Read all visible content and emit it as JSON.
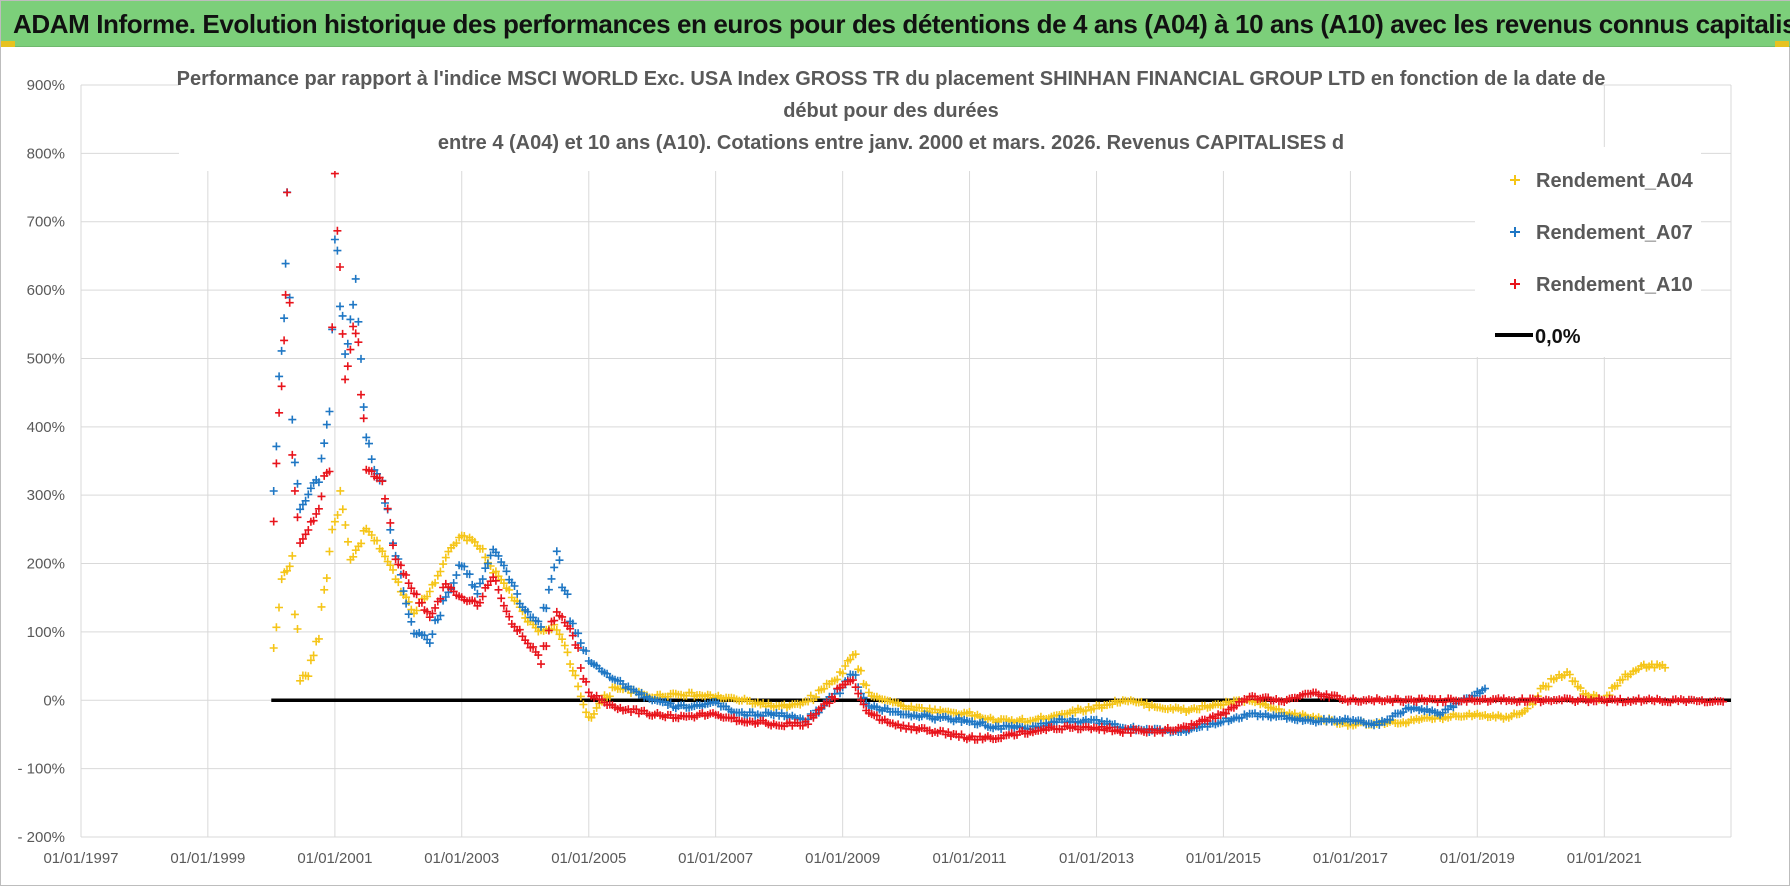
{
  "header": {
    "title": "ADAM Informe. Evolution historique des performances en euros pour des détentions de 4 ans (A04) à 10 ans (A10) avec les revenus connus capitalisés"
  },
  "chart_data": {
    "type": "scatter",
    "title_lines": [
      "Performance par rapport à l'indice MSCI WORLD Exc. USA Index GROSS TR  du placement SHINHAN FINANCIAL GROUP LTD en fonction de la date de",
      "début pour des durées",
      "entre 4 (A04) et 10 ans (A10). Cotations entre janv. 2000 et mars. 2026. Revenus CAPITALISES d"
    ],
    "xlabel": "",
    "ylabel": "",
    "xlim": [
      "1997-01-01",
      "2022-12-31"
    ],
    "ylim": [
      -200,
      900
    ],
    "y_ticks": [
      -200,
      -100,
      0,
      100,
      200,
      300,
      400,
      500,
      600,
      700,
      800,
      900
    ],
    "y_tick_labels": [
      "- 200%",
      "- 100%",
      "0%",
      "100%",
      "200%",
      "300%",
      "400%",
      "500%",
      "600%",
      "700%",
      "800%",
      "900%"
    ],
    "x_ticks": [
      "1997-01-01",
      "1999-01-01",
      "2001-01-01",
      "2003-01-01",
      "2005-01-01",
      "2007-01-01",
      "2009-01-01",
      "2011-01-01",
      "2013-01-01",
      "2015-01-01",
      "2017-01-01",
      "2019-01-01",
      "2021-01-01"
    ],
    "x_tick_labels": [
      "01/01/1997",
      "01/01/1999",
      "01/01/2001",
      "01/01/2003",
      "01/01/2005",
      "01/01/2007",
      "01/01/2009",
      "01/01/2011",
      "01/01/2013",
      "01/01/2015",
      "01/01/2017",
      "01/01/2019",
      "01/01/2021"
    ],
    "grid": true,
    "legend_position": "top-right",
    "series": [
      {
        "name": "Rendement_A04",
        "color": "#f5c518",
        "marker": "+",
        "points": [
          [
            "2000-01-15",
            70
          ],
          [
            "2000-03-01",
            180
          ],
          [
            "2000-05-01",
            200
          ],
          [
            "2000-06-15",
            30
          ],
          [
            "2000-08-01",
            40
          ],
          [
            "2000-10-01",
            100
          ],
          [
            "2000-12-01",
            220
          ],
          [
            "2001-02-01",
            300
          ],
          [
            "2001-04-01",
            200
          ],
          [
            "2001-07-01",
            250
          ],
          [
            "2001-10-01",
            220
          ],
          [
            "2002-01-01",
            170
          ],
          [
            "2002-04-01",
            130
          ],
          [
            "2002-07-01",
            160
          ],
          [
            "2002-10-01",
            210
          ],
          [
            "2003-01-01",
            240
          ],
          [
            "2003-04-01",
            230
          ],
          [
            "2003-07-01",
            190
          ],
          [
            "2003-10-01",
            160
          ],
          [
            "2004-01-01",
            120
          ],
          [
            "2004-04-01",
            100
          ],
          [
            "2004-07-01",
            110
          ],
          [
            "2004-10-01",
            40
          ],
          [
            "2005-01-01",
            -25
          ],
          [
            "2005-06-01",
            20
          ],
          [
            "2006-01-01",
            5
          ],
          [
            "2006-06-01",
            10
          ],
          [
            "2007-01-01",
            5
          ],
          [
            "2007-06-01",
            0
          ],
          [
            "2008-01-01",
            -10
          ],
          [
            "2008-06-01",
            -5
          ],
          [
            "2009-01-01",
            40
          ],
          [
            "2009-03-01",
            70
          ],
          [
            "2009-06-01",
            10
          ],
          [
            "2010-01-01",
            -10
          ],
          [
            "2010-06-01",
            -15
          ],
          [
            "2011-01-01",
            -20
          ],
          [
            "2011-06-01",
            -30
          ],
          [
            "2012-01-01",
            -30
          ],
          [
            "2012-06-01",
            -20
          ],
          [
            "2013-01-01",
            -10
          ],
          [
            "2013-06-01",
            0
          ],
          [
            "2014-01-01",
            -10
          ],
          [
            "2014-06-01",
            -15
          ],
          [
            "2015-01-01",
            -5
          ],
          [
            "2015-06-01",
            0
          ],
          [
            "2016-01-01",
            -20
          ],
          [
            "2016-06-01",
            -25
          ],
          [
            "2017-01-01",
            -35
          ],
          [
            "2017-06-01",
            -35
          ],
          [
            "2018-01-01",
            -30
          ],
          [
            "2018-06-01",
            -25
          ],
          [
            "2019-01-01",
            -20
          ],
          [
            "2019-06-01",
            -25
          ],
          [
            "2019-10-01",
            -15
          ],
          [
            "2020-03-01",
            30
          ],
          [
            "2020-06-01",
            40
          ],
          [
            "2020-09-01",
            10
          ],
          [
            "2021-01-01",
            0
          ],
          [
            "2021-04-01",
            30
          ],
          [
            "2021-08-01",
            50
          ],
          [
            "2022-01-01",
            50
          ]
        ]
      },
      {
        "name": "Rendement_A07",
        "color": "#1f77c4",
        "marker": "+",
        "points": [
          [
            "2000-01-15",
            300
          ],
          [
            "2000-02-15",
            480
          ],
          [
            "2000-03-15",
            550
          ],
          [
            "2000-04-01",
            750
          ],
          [
            "2000-05-01",
            400
          ],
          [
            "2000-06-15",
            280
          ],
          [
            "2000-08-01",
            300
          ],
          [
            "2000-10-01",
            330
          ],
          [
            "2000-12-01",
            420
          ],
          [
            "2001-01-01",
            690
          ],
          [
            "2001-03-01",
            500
          ],
          [
            "2001-05-01",
            620
          ],
          [
            "2001-07-01",
            380
          ],
          [
            "2001-10-01",
            310
          ],
          [
            "2002-01-01",
            200
          ],
          [
            "2002-04-01",
            100
          ],
          [
            "2002-07-01",
            90
          ],
          [
            "2002-10-01",
            150
          ],
          [
            "2003-01-01",
            200
          ],
          [
            "2003-04-01",
            160
          ],
          [
            "2003-07-01",
            220
          ],
          [
            "2003-10-01",
            180
          ],
          [
            "2004-01-01",
            130
          ],
          [
            "2004-04-01",
            110
          ],
          [
            "2004-07-01",
            210
          ],
          [
            "2004-10-01",
            110
          ],
          [
            "2005-01-01",
            60
          ],
          [
            "2005-06-01",
            30
          ],
          [
            "2006-01-01",
            0
          ],
          [
            "2006-06-01",
            -10
          ],
          [
            "2007-01-01",
            -5
          ],
          [
            "2007-06-01",
            -20
          ],
          [
            "2008-01-01",
            -20
          ],
          [
            "2008-06-01",
            -30
          ],
          [
            "2009-01-01",
            20
          ],
          [
            "2009-03-01",
            40
          ],
          [
            "2009-06-01",
            -10
          ],
          [
            "2010-01-01",
            -20
          ],
          [
            "2010-06-01",
            -25
          ],
          [
            "2011-01-01",
            -30
          ],
          [
            "2011-06-01",
            -40
          ],
          [
            "2012-01-01",
            -40
          ],
          [
            "2012-06-01",
            -30
          ],
          [
            "2013-01-01",
            -30
          ],
          [
            "2013-06-01",
            -40
          ],
          [
            "2014-01-01",
            -45
          ],
          [
            "2014-06-01",
            -45
          ],
          [
            "2015-01-01",
            -30
          ],
          [
            "2015-06-01",
            -20
          ],
          [
            "2016-01-01",
            -25
          ],
          [
            "2016-06-01",
            -30
          ],
          [
            "2017-01-01",
            -30
          ],
          [
            "2017-06-01",
            -35
          ],
          [
            "2018-01-01",
            -10
          ],
          [
            "2018-06-01",
            -20
          ],
          [
            "2018-10-01",
            0
          ],
          [
            "2019-01-01",
            10
          ],
          [
            "2019-03-01",
            20
          ]
        ]
      },
      {
        "name": "Rendement_A10",
        "color": "#e8141c",
        "marker": "+",
        "points": [
          [
            "2000-01-15",
            260
          ],
          [
            "2000-02-15",
            420
          ],
          [
            "2000-03-15",
            500
          ],
          [
            "2000-04-01",
            720
          ],
          [
            "2000-05-01",
            360
          ],
          [
            "2000-06-15",
            230
          ],
          [
            "2000-08-01",
            250
          ],
          [
            "2000-10-01",
            280
          ],
          [
            "2000-12-01",
            360
          ],
          [
            "2001-01-01",
            760
          ],
          [
            "2001-03-01",
            470
          ],
          [
            "2001-05-01",
            560
          ],
          [
            "2001-07-01",
            340
          ],
          [
            "2001-10-01",
            320
          ],
          [
            "2002-01-01",
            200
          ],
          [
            "2002-04-01",
            160
          ],
          [
            "2002-07-01",
            120
          ],
          [
            "2002-10-01",
            170
          ],
          [
            "2003-01-01",
            150
          ],
          [
            "2003-04-01",
            140
          ],
          [
            "2003-07-01",
            180
          ],
          [
            "2003-10-01",
            120
          ],
          [
            "2004-01-01",
            90
          ],
          [
            "2004-04-01",
            60
          ],
          [
            "2004-07-01",
            130
          ],
          [
            "2004-10-01",
            100
          ],
          [
            "2005-01-01",
            10
          ],
          [
            "2005-06-01",
            -10
          ],
          [
            "2006-01-01",
            -20
          ],
          [
            "2006-06-01",
            -25
          ],
          [
            "2007-01-01",
            -20
          ],
          [
            "2007-06-01",
            -30
          ],
          [
            "2008-01-01",
            -35
          ],
          [
            "2008-06-01",
            -35
          ],
          [
            "2009-01-01",
            20
          ],
          [
            "2009-03-01",
            30
          ],
          [
            "2009-06-01",
            -20
          ],
          [
            "2010-01-01",
            -40
          ],
          [
            "2010-06-01",
            -45
          ],
          [
            "2011-01-01",
            -55
          ],
          [
            "2011-06-01",
            -55
          ],
          [
            "2012-01-01",
            -45
          ],
          [
            "2012-06-01",
            -40
          ],
          [
            "2013-01-01",
            -40
          ],
          [
            "2013-06-01",
            -45
          ],
          [
            "2014-01-01",
            -45
          ],
          [
            "2014-06-01",
            -40
          ],
          [
            "2015-01-01",
            -20
          ],
          [
            "2015-06-01",
            5
          ],
          [
            "2016-01-01",
            0
          ],
          [
            "2016-06-01",
            10
          ],
          [
            "2017-01-01",
            0
          ],
          [
            "2018-01-01",
            0
          ],
          [
            "2019-01-01",
            0
          ],
          [
            "2020-01-01",
            0
          ],
          [
            "2021-01-01",
            0
          ],
          [
            "2022-01-01",
            0
          ],
          [
            "2022-12-01",
            0
          ]
        ]
      }
    ],
    "reference_line": {
      "name": "0,0%",
      "value": 0,
      "from": "2000-01-01",
      "to": "2022-12-31",
      "color": "#000000"
    }
  }
}
